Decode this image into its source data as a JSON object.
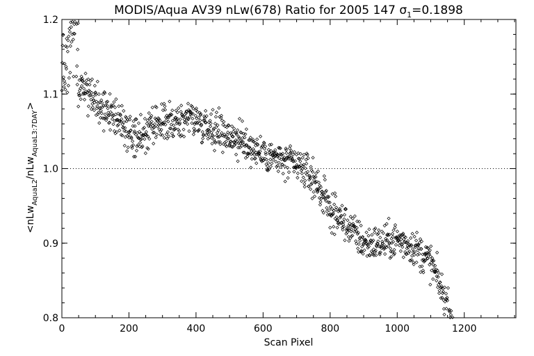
{
  "chart_data": {
    "type": "scatter",
    "title": "MODIS/Aqua AV39 nLw(678) Ratio for 2005 147 σ",
    "title_sub": "1",
    "title_tail": "=0.1898",
    "xlabel": "Scan Pixel",
    "ylabel_parts": [
      "<nLw",
      "AquaL2",
      "/nLw",
      "AquaL3:7DAY",
      ">"
    ],
    "xlim": [
      0,
      1354
    ],
    "ylim": [
      0.8,
      1.2
    ],
    "x_ticks": [
      0,
      200,
      400,
      600,
      800,
      1000,
      1200
    ],
    "y_ticks": [
      0.8,
      0.9,
      1.0,
      1.1,
      1.2
    ],
    "y_tick_labels": [
      "0.8",
      "0.9",
      "1.0",
      "1.1",
      "1.2"
    ],
    "reference_line": {
      "y": 1.0,
      "style": "dotted"
    },
    "marker": "diamond",
    "grid": false,
    "trend": [
      [
        0,
        1.15
      ],
      [
        10,
        1.13
      ],
      [
        20,
        1.16
      ],
      [
        30,
        1.19
      ],
      [
        40,
        1.2
      ],
      [
        50,
        1.11
      ],
      [
        80,
        1.1
      ],
      [
        100,
        1.09
      ],
      [
        130,
        1.08
      ],
      [
        160,
        1.07
      ],
      [
        200,
        1.045
      ],
      [
        230,
        1.04
      ],
      [
        260,
        1.05
      ],
      [
        300,
        1.06
      ],
      [
        340,
        1.06
      ],
      [
        380,
        1.072
      ],
      [
        400,
        1.065
      ],
      [
        450,
        1.055
      ],
      [
        500,
        1.045
      ],
      [
        560,
        1.03
      ],
      [
        600,
        1.02
      ],
      [
        660,
        1.01
      ],
      [
        720,
        1.0
      ],
      [
        760,
        0.98
      ],
      [
        800,
        0.945
      ],
      [
        850,
        0.925
      ],
      [
        900,
        0.9
      ],
      [
        950,
        0.9
      ],
      [
        1000,
        0.905
      ],
      [
        1050,
        0.895
      ],
      [
        1100,
        0.875
      ],
      [
        1130,
        0.84
      ],
      [
        1150,
        0.815
      ],
      [
        1165,
        0.8
      ]
    ],
    "spread": 0.012,
    "count": 1140,
    "seed": 147
  }
}
